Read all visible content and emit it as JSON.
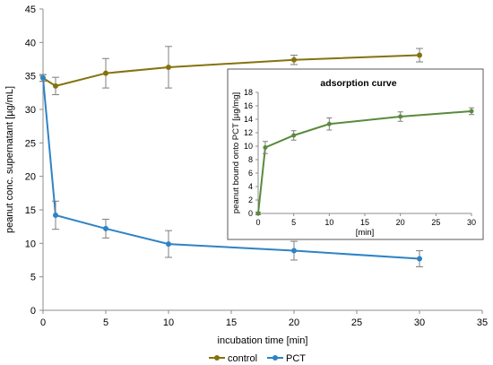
{
  "chart_data": [
    {
      "type": "line",
      "title": "",
      "xlabel": "incubation time [min]",
      "ylabel": "peanut conc. supernatant [µg/mL]",
      "xlim": [
        0,
        35
      ],
      "ylim": [
        0,
        45
      ],
      "xticks": [
        0,
        5,
        10,
        15,
        20,
        25,
        30,
        35
      ],
      "yticks": [
        0,
        5,
        10,
        15,
        20,
        25,
        30,
        35,
        40,
        45
      ],
      "grid": false,
      "legend_placement": "bottom",
      "series": [
        {
          "name": "control",
          "color": "#85720f",
          "x": [
            0,
            1,
            5,
            10,
            20,
            30
          ],
          "y": [
            34.7,
            33.5,
            35.4,
            36.3,
            37.4,
            38.1
          ],
          "error": [
            0.5,
            1.3,
            2.2,
            3.1,
            0.7,
            1.0
          ]
        },
        {
          "name": "PCT",
          "color": "#2e83c6",
          "x": [
            0,
            1,
            5,
            10,
            20,
            30
          ],
          "y": [
            34.7,
            14.2,
            12.2,
            9.9,
            8.9,
            7.7
          ],
          "error": [
            0.5,
            2.1,
            1.4,
            2.0,
            1.4,
            1.2
          ]
        }
      ]
    },
    {
      "type": "line",
      "title": "adsorption curve",
      "xlabel": "[min]",
      "ylabel": "peanut bound onto PCT [µg/mg]",
      "xlim": [
        0,
        30
      ],
      "ylim": [
        0,
        18
      ],
      "xticks": [
        0,
        5,
        10,
        15,
        20,
        25,
        30
      ],
      "yticks": [
        0,
        2,
        4,
        6,
        8,
        10,
        12,
        14,
        16,
        18
      ],
      "grid": false,
      "series": [
        {
          "color": "#5a8a3c",
          "x": [
            0,
            1,
            5,
            10,
            20,
            30
          ],
          "y": [
            0,
            9.8,
            11.6,
            13.3,
            14.4,
            15.2
          ],
          "error": [
            0.2,
            0.9,
            0.7,
            0.9,
            0.7,
            0.5
          ]
        }
      ]
    }
  ]
}
